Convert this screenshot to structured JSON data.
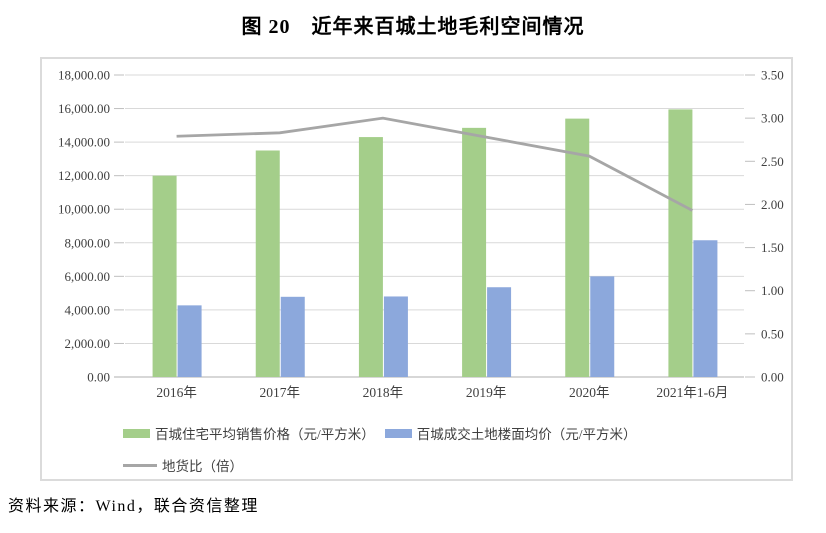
{
  "title": "图 20　近年来百城土地毛利空间情况",
  "source_note": "资料来源：Wind，联合资信整理",
  "colors": {
    "bar_green": "#a4ce8a",
    "bar_blue": "#8ca8dc",
    "line_gray": "#a6a6a6",
    "gridline": "#d9d9d9",
    "axis_line": "#bfbfbf",
    "label_text": "#404040"
  },
  "chart_data": {
    "type": "bar",
    "subtype": "bar+line combo, dual axis",
    "title": "图 20　近年来百城土地毛利空间情况",
    "categories": [
      "2016年",
      "2017年",
      "2018年",
      "2019年",
      "2020年",
      "2021年1-6月"
    ],
    "series": [
      {
        "name": "百城住宅平均销售价格（元/平方米）",
        "type": "bar",
        "axis": "left",
        "color": "#a4ce8a",
        "values": [
          12000,
          13500,
          14300,
          14850,
          15400,
          15950
        ]
      },
      {
        "name": "百城成交土地楼面均价（元/平方米）",
        "type": "bar",
        "axis": "left",
        "color": "#8ca8dc",
        "values": [
          4270,
          4780,
          4800,
          5350,
          6000,
          8150
        ]
      },
      {
        "name": "地货比（倍）",
        "type": "line",
        "axis": "right",
        "color": "#a6a6a6",
        "values": [
          2.79,
          2.83,
          3.0,
          2.78,
          2.56,
          1.93
        ]
      }
    ],
    "left_axis": {
      "min": 0,
      "max": 18000,
      "step": 2000,
      "tick_labels": [
        "0.00",
        "2,000.00",
        "4,000.00",
        "6,000.00",
        "8,000.00",
        "10,000.00",
        "12,000.00",
        "14,000.00",
        "16,000.00",
        "18,000.00"
      ]
    },
    "right_axis": {
      "min": 0,
      "max": 3.5,
      "step": 0.5,
      "tick_labels": [
        "0.00",
        "0.50",
        "1.00",
        "1.50",
        "2.00",
        "2.50",
        "3.00",
        "3.50"
      ]
    },
    "grid": true,
    "legend_position": "bottom-left"
  }
}
